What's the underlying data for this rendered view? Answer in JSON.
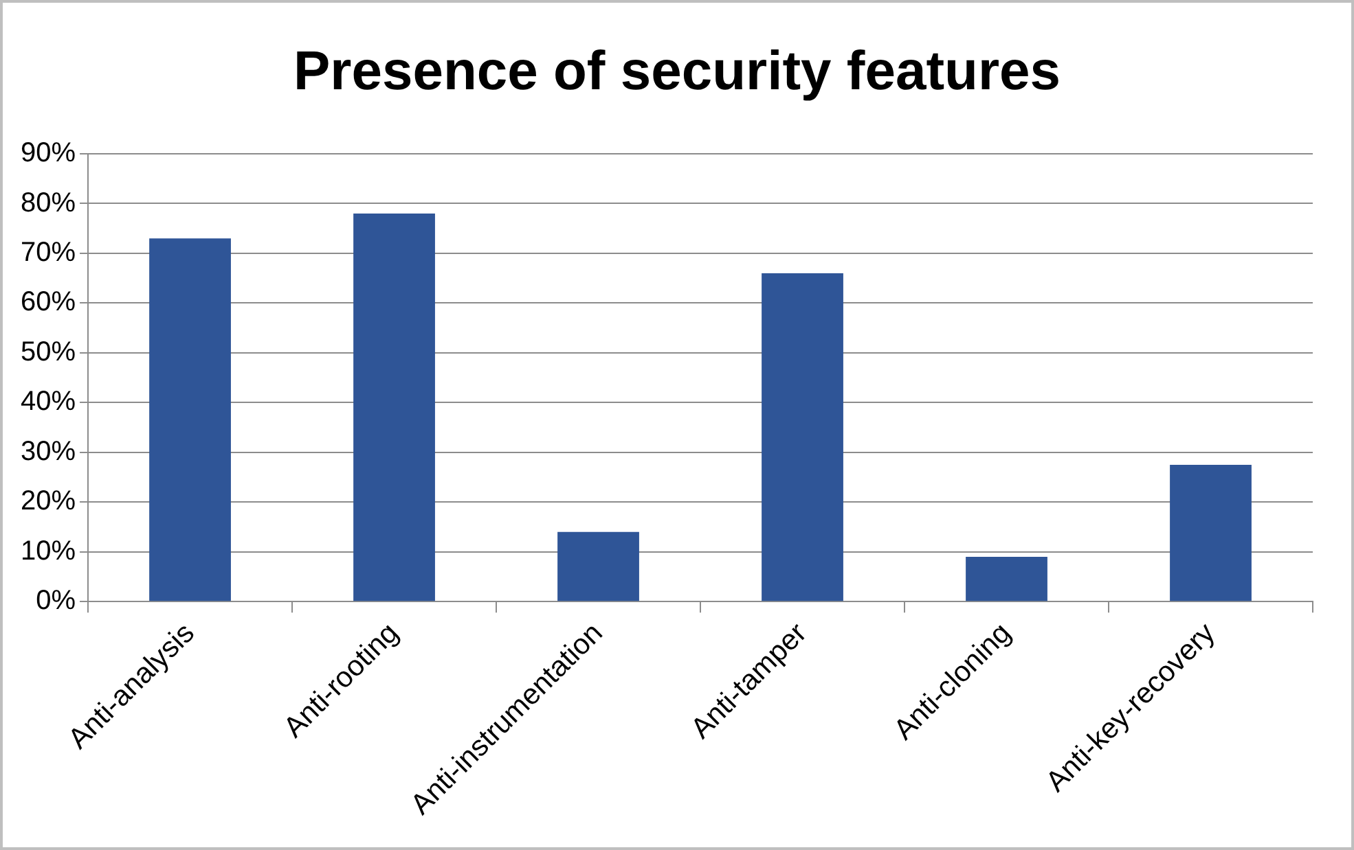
{
  "chart_data": {
    "type": "bar",
    "title": "Presence of security features",
    "categories": [
      "Anti-analysis",
      "Anti-rooting",
      "Anti-instrumentation",
      "Anti-tamper",
      "Anti-cloning",
      "Anti-key-recovery"
    ],
    "values": [
      73,
      78,
      14,
      66,
      9,
      27.5
    ],
    "color": "#2f5597",
    "ylim": [
      0,
      90
    ],
    "yticks": [
      {
        "value": 0,
        "label": "0%"
      },
      {
        "value": 10,
        "label": "10%"
      },
      {
        "value": 20,
        "label": "20%"
      },
      {
        "value": 30,
        "label": "30%"
      },
      {
        "value": 40,
        "label": "40%"
      },
      {
        "value": 50,
        "label": "50%"
      },
      {
        "value": 60,
        "label": "60%"
      },
      {
        "value": 70,
        "label": "70%"
      },
      {
        "value": 80,
        "label": "80%"
      },
      {
        "value": 90,
        "label": "90%"
      }
    ],
    "grid": "y",
    "legend": false
  }
}
